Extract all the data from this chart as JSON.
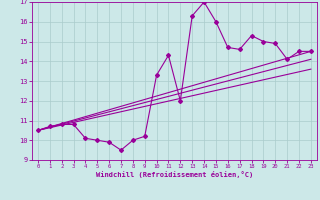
{
  "xlabel": "Windchill (Refroidissement éolien,°C)",
  "xlim": [
    -0.5,
    23.5
  ],
  "ylim": [
    9,
    17
  ],
  "yticks": [
    9,
    10,
    11,
    12,
    13,
    14,
    15,
    16,
    17
  ],
  "xticks": [
    0,
    1,
    2,
    3,
    4,
    5,
    6,
    7,
    8,
    9,
    10,
    11,
    12,
    13,
    14,
    15,
    16,
    17,
    18,
    19,
    20,
    21,
    22,
    23
  ],
  "line_color": "#990099",
  "bg_color": "#cce8e8",
  "grid_color": "#aacccc",
  "data_x": [
    0,
    1,
    2,
    3,
    4,
    5,
    6,
    7,
    8,
    9,
    10,
    11,
    12,
    13,
    14,
    15,
    16,
    17,
    18,
    19,
    20,
    21,
    22,
    23
  ],
  "data_y": [
    10.5,
    10.7,
    10.8,
    10.8,
    10.1,
    10.0,
    9.9,
    9.5,
    10.0,
    10.2,
    13.3,
    14.3,
    12.0,
    16.3,
    17.0,
    16.0,
    14.7,
    14.6,
    15.3,
    15.0,
    14.9,
    14.1,
    14.5,
    14.5
  ],
  "trend1_x": [
    0,
    23
  ],
  "trend1_y": [
    10.5,
    14.5
  ],
  "trend2_x": [
    0,
    23
  ],
  "trend2_y": [
    10.5,
    13.6
  ],
  "trend3_x": [
    0,
    23
  ],
  "trend3_y": [
    10.5,
    14.1
  ]
}
